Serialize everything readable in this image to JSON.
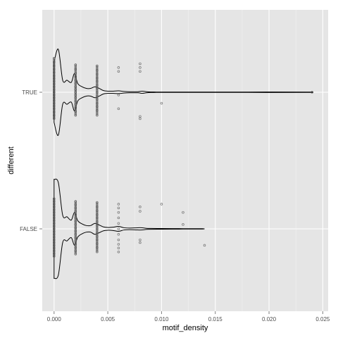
{
  "chart_data": {
    "type": "violin",
    "orientation": "horizontal",
    "title": "",
    "xlabel": "motif_density",
    "ylabel": "different",
    "xlim": [
      -0.0011,
      0.0255
    ],
    "x_ticks": [
      0.0,
      0.005,
      0.01,
      0.015,
      0.02,
      0.025
    ],
    "x_tick_labels": [
      "0.000",
      "0.005",
      "0.010",
      "0.015",
      "0.020",
      "0.025"
    ],
    "categories": [
      "FALSE",
      "TRUE"
    ],
    "grid": true,
    "legend": "none",
    "colors": {
      "panel": "#e5e5e5",
      "grid_major": "#ffffff",
      "grid_minor": "#f2f2f2",
      "violin_line": "#000000",
      "point": "#555555",
      "tick_text": "#4d4d4d"
    },
    "violins": [
      {
        "category": "TRUE",
        "min": 0.0,
        "max": 0.024,
        "profile": [
          [
            0.0,
            0.55
          ],
          [
            0.0004,
            0.78
          ],
          [
            0.0008,
            0.22
          ],
          [
            0.0012,
            0.22
          ],
          [
            0.0016,
            0.18
          ],
          [
            0.0019,
            0.34
          ],
          [
            0.0022,
            0.16
          ],
          [
            0.0026,
            0.1
          ],
          [
            0.003,
            0.07
          ],
          [
            0.0034,
            0.07
          ],
          [
            0.0038,
            0.1
          ],
          [
            0.0042,
            0.07
          ],
          [
            0.0046,
            0.03
          ],
          [
            0.005,
            0.02
          ],
          [
            0.0055,
            0.02
          ],
          [
            0.006,
            0.025
          ],
          [
            0.0065,
            0.015
          ],
          [
            0.007,
            0.01
          ],
          [
            0.0078,
            0.01
          ],
          [
            0.0082,
            0.02
          ],
          [
            0.0086,
            0.01
          ],
          [
            0.009,
            0.005
          ],
          [
            0.0095,
            0.004
          ],
          [
            0.012,
            0.004
          ],
          [
            0.018,
            0.004
          ],
          [
            0.0235,
            0.004
          ],
          [
            0.024,
            0.0
          ]
        ]
      },
      {
        "category": "FALSE",
        "min": 0.0,
        "max": 0.014,
        "profile": [
          [
            0.0,
            0.9
          ],
          [
            0.0004,
            0.84
          ],
          [
            0.0008,
            0.25
          ],
          [
            0.0012,
            0.22
          ],
          [
            0.0016,
            0.16
          ],
          [
            0.0019,
            0.3
          ],
          [
            0.0022,
            0.15
          ],
          [
            0.0026,
            0.09
          ],
          [
            0.003,
            0.06
          ],
          [
            0.0034,
            0.06
          ],
          [
            0.0038,
            0.1
          ],
          [
            0.0042,
            0.07
          ],
          [
            0.0046,
            0.035
          ],
          [
            0.005,
            0.025
          ],
          [
            0.0055,
            0.03
          ],
          [
            0.006,
            0.045
          ],
          [
            0.0065,
            0.02
          ],
          [
            0.007,
            0.015
          ],
          [
            0.0078,
            0.02
          ],
          [
            0.0082,
            0.02
          ],
          [
            0.0086,
            0.01
          ],
          [
            0.009,
            0.008
          ],
          [
            0.01,
            0.006
          ],
          [
            0.011,
            0.005
          ],
          [
            0.012,
            0.004
          ],
          [
            0.013,
            0.003
          ],
          [
            0.0138,
            0.003
          ],
          [
            0.014,
            0.0
          ]
        ]
      }
    ],
    "points": [
      {
        "category": "TRUE",
        "x": 0.0,
        "offsets": [
          -0.62,
          -0.55,
          -0.48,
          -0.42,
          -0.36,
          -0.3,
          -0.25,
          -0.2,
          -0.15,
          -0.1,
          -0.05,
          0.0,
          0.05,
          0.1,
          0.15,
          0.2,
          0.25,
          0.3,
          0.36,
          0.42,
          0.48
        ]
      },
      {
        "category": "TRUE",
        "x": 0.002,
        "offsets": [
          -0.5,
          -0.42,
          -0.35,
          -0.28,
          -0.22,
          -0.16,
          -0.1,
          -0.05,
          0.0,
          0.05,
          0.1,
          0.16,
          0.22,
          0.28,
          0.35,
          0.42
        ]
      },
      {
        "category": "TRUE",
        "x": 0.004,
        "offsets": [
          -0.48,
          -0.4,
          -0.33,
          -0.26,
          -0.2,
          -0.13,
          -0.07,
          0.0,
          0.07,
          0.13,
          0.2,
          0.26,
          0.33,
          0.42
        ]
      },
      {
        "category": "TRUE",
        "x": 0.006,
        "offsets": [
          -0.45,
          -0.38,
          0.05,
          0.3
        ]
      },
      {
        "category": "TRUE",
        "x": 0.008,
        "offsets": [
          -0.38,
          -0.45,
          -0.52,
          0.48,
          0.44
        ]
      },
      {
        "category": "TRUE",
        "x": 0.01,
        "offsets": [
          0.2
        ]
      },
      {
        "category": "TRUE",
        "x": 0.024,
        "offsets": [
          0.0
        ]
      },
      {
        "category": "FALSE",
        "x": 0.0,
        "offsets": [
          -0.55,
          -0.5,
          -0.45,
          -0.4,
          -0.35,
          -0.3,
          -0.25,
          -0.2,
          -0.15,
          -0.1,
          -0.05,
          0.0,
          0.05,
          0.1,
          0.15,
          0.2,
          0.25,
          0.3,
          0.35,
          0.4,
          0.45,
          0.5
        ]
      },
      {
        "category": "FALSE",
        "x": 0.002,
        "offsets": [
          -0.5,
          -0.44,
          -0.38,
          -0.32,
          -0.26,
          -0.2,
          -0.14,
          -0.08,
          -0.02,
          0.04,
          0.1,
          0.16,
          0.22,
          0.28,
          0.34,
          0.4,
          0.46
        ]
      },
      {
        "category": "FALSE",
        "x": 0.004,
        "offsets": [
          -0.48,
          -0.4,
          -0.33,
          -0.26,
          -0.2,
          -0.13,
          -0.06,
          0.0,
          0.07,
          0.14,
          0.2,
          0.27,
          0.34,
          0.42
        ]
      },
      {
        "category": "FALSE",
        "x": 0.006,
        "offsets": [
          -0.45,
          -0.38,
          -0.3,
          -0.2,
          -0.1,
          0.0,
          0.1,
          0.2,
          0.28,
          0.35,
          0.42
        ]
      },
      {
        "category": "FALSE",
        "x": 0.008,
        "offsets": [
          -0.4,
          -0.32,
          0.2,
          0.25
        ]
      },
      {
        "category": "FALSE",
        "x": 0.01,
        "offsets": [
          -0.45
        ]
      },
      {
        "category": "FALSE",
        "x": 0.012,
        "offsets": [
          -0.3,
          -0.08
        ]
      },
      {
        "category": "FALSE",
        "x": 0.014,
        "offsets": [
          0.3
        ]
      }
    ]
  }
}
